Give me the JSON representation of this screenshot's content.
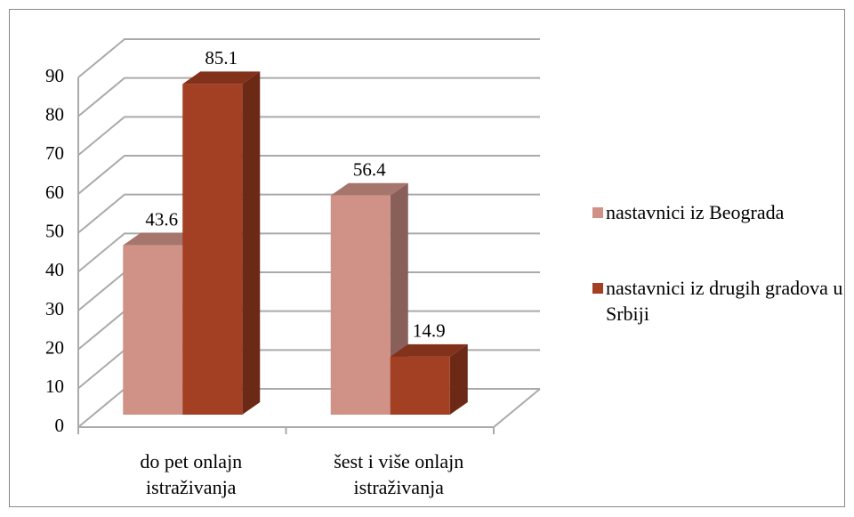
{
  "chart_data": {
    "type": "bar3d",
    "categories": [
      "do pet onlajn istraživanja",
      "šest i više onlajn istraživanja"
    ],
    "series": [
      {
        "name": "nastavnici iz Beograda",
        "color": "#d09287",
        "values": [
          43.6,
          56.4
        ]
      },
      {
        "name": "nastavnici iz drugih gradova u Srbiji",
        "color": "#a33f22",
        "values": [
          85.1,
          14.9
        ]
      }
    ],
    "ylim": [
      0,
      90
    ],
    "yticks": [
      0,
      10,
      20,
      30,
      40,
      50,
      60,
      70,
      80,
      90
    ],
    "grid": true,
    "legend": "right"
  }
}
